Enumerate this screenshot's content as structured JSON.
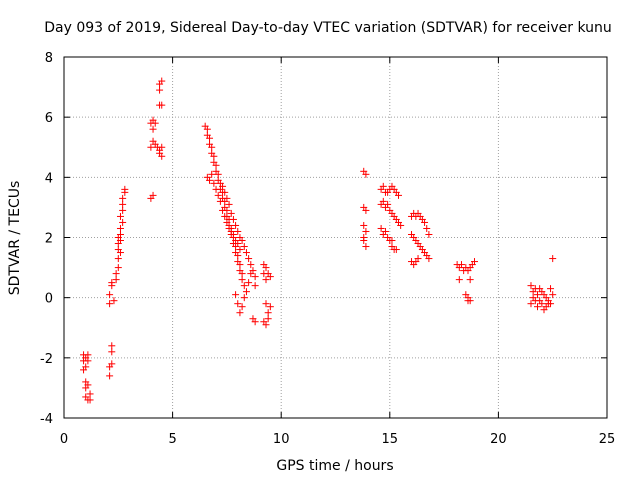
{
  "chart_data": {
    "type": "scatter",
    "title": "Day 093 of 2019, Sidereal Day-to-day VTEC variation (SDTVAR) for receiver kunu",
    "xlabel": "GPS time / hours",
    "ylabel": "SDTVAR / TECUs",
    "xlim": [
      0,
      25
    ],
    "ylim": [
      -4,
      8
    ],
    "xticks": [
      "0",
      "5",
      "10",
      "15",
      "20",
      "25"
    ],
    "yticks": [
      "-4",
      "-2",
      "0",
      "2",
      "4",
      "6",
      "8"
    ],
    "grid": true,
    "marker": "+",
    "color": "#ff0000",
    "series": [
      {
        "name": "SDTVAR",
        "points": [
          [
            0.9,
            -1.9
          ],
          [
            0.9,
            -2.1
          ],
          [
            0.9,
            -2.4
          ],
          [
            1.0,
            -2.0
          ],
          [
            1.0,
            -2.3
          ],
          [
            1.1,
            -1.9
          ],
          [
            1.1,
            -2.1
          ],
          [
            1.0,
            -2.8
          ],
          [
            1.0,
            -3.0
          ],
          [
            1.1,
            -2.9
          ],
          [
            1.0,
            -3.3
          ],
          [
            1.1,
            -3.4
          ],
          [
            1.2,
            -3.4
          ],
          [
            1.2,
            -3.2
          ],
          [
            2.1,
            -2.3
          ],
          [
            2.1,
            -2.6
          ],
          [
            2.2,
            -2.2
          ],
          [
            2.2,
            -1.8
          ],
          [
            2.2,
            -1.6
          ],
          [
            2.1,
            -0.2
          ],
          [
            2.1,
            0.1
          ],
          [
            2.2,
            0.4
          ],
          [
            2.2,
            0.5
          ],
          [
            2.3,
            -0.1
          ],
          [
            2.4,
            0.6
          ],
          [
            2.4,
            0.8
          ],
          [
            2.5,
            1.0
          ],
          [
            2.5,
            1.3
          ],
          [
            2.5,
            1.6
          ],
          [
            2.6,
            1.9
          ],
          [
            2.6,
            2.1
          ],
          [
            2.6,
            2.3
          ],
          [
            2.7,
            2.5
          ],
          [
            2.6,
            2.7
          ],
          [
            2.7,
            2.9
          ],
          [
            2.7,
            3.1
          ],
          [
            2.7,
            3.3
          ],
          [
            2.8,
            3.5
          ],
          [
            2.8,
            3.6
          ],
          [
            2.5,
            2.0
          ],
          [
            2.6,
            1.5
          ],
          [
            2.5,
            1.8
          ],
          [
            4.0,
            3.3
          ],
          [
            4.1,
            3.4
          ],
          [
            4.0,
            5.0
          ],
          [
            4.1,
            5.2
          ],
          [
            4.2,
            5.1
          ],
          [
            4.0,
            5.8
          ],
          [
            4.1,
            5.9
          ],
          [
            4.2,
            5.8
          ],
          [
            4.1,
            5.6
          ],
          [
            4.3,
            5.0
          ],
          [
            4.4,
            4.8
          ],
          [
            4.5,
            4.7
          ],
          [
            4.4,
            4.9
          ],
          [
            4.5,
            5.0
          ],
          [
            4.4,
            6.4
          ],
          [
            4.5,
            6.4
          ],
          [
            4.4,
            6.9
          ],
          [
            4.4,
            7.1
          ],
          [
            4.5,
            7.2
          ],
          [
            6.5,
            5.7
          ],
          [
            6.6,
            5.6
          ],
          [
            6.6,
            5.4
          ],
          [
            6.7,
            5.3
          ],
          [
            6.7,
            5.1
          ],
          [
            6.8,
            5.0
          ],
          [
            6.8,
            4.8
          ],
          [
            6.9,
            4.7
          ],
          [
            6.9,
            4.5
          ],
          [
            7.0,
            4.4
          ],
          [
            7.0,
            4.2
          ],
          [
            7.1,
            4.1
          ],
          [
            7.1,
            3.9
          ],
          [
            7.2,
            3.8
          ],
          [
            7.2,
            3.6
          ],
          [
            7.3,
            3.5
          ],
          [
            7.3,
            3.3
          ],
          [
            7.4,
            3.2
          ],
          [
            7.4,
            3.0
          ],
          [
            7.5,
            2.9
          ],
          [
            7.5,
            2.7
          ],
          [
            7.6,
            2.6
          ],
          [
            7.6,
            2.4
          ],
          [
            7.7,
            2.3
          ],
          [
            7.7,
            2.1
          ],
          [
            7.8,
            2.0
          ],
          [
            7.8,
            1.8
          ],
          [
            7.9,
            1.7
          ],
          [
            7.9,
            1.5
          ],
          [
            8.0,
            1.4
          ],
          [
            8.0,
            1.2
          ],
          [
            8.1,
            1.1
          ],
          [
            8.1,
            0.9
          ],
          [
            8.2,
            0.8
          ],
          [
            8.2,
            0.6
          ],
          [
            8.3,
            0.4
          ],
          [
            8.4,
            0.2
          ],
          [
            6.6,
            4.0
          ],
          [
            6.7,
            3.9
          ],
          [
            6.8,
            4.1
          ],
          [
            6.9,
            3.8
          ],
          [
            7.0,
            3.6
          ],
          [
            7.1,
            3.4
          ],
          [
            7.2,
            3.2
          ],
          [
            7.3,
            2.9
          ],
          [
            7.4,
            2.7
          ],
          [
            7.5,
            2.5
          ],
          [
            7.6,
            2.3
          ],
          [
            7.7,
            2.2
          ],
          [
            7.8,
            2.1
          ],
          [
            7.9,
            1.9
          ],
          [
            8.0,
            1.8
          ],
          [
            8.1,
            1.6
          ],
          [
            7.3,
            3.7
          ],
          [
            7.4,
            3.5
          ],
          [
            7.5,
            3.3
          ],
          [
            7.6,
            3.1
          ],
          [
            7.7,
            2.8
          ],
          [
            7.8,
            2.6
          ],
          [
            7.9,
            2.4
          ],
          [
            8.0,
            2.2
          ],
          [
            8.1,
            2.0
          ],
          [
            8.2,
            1.9
          ],
          [
            8.3,
            1.7
          ],
          [
            8.4,
            1.5
          ],
          [
            8.5,
            1.3
          ],
          [
            8.6,
            1.1
          ],
          [
            8.7,
            0.9
          ],
          [
            8.8,
            0.7
          ],
          [
            8.8,
            0.4
          ],
          [
            7.9,
            0.1
          ],
          [
            8.0,
            -0.2
          ],
          [
            8.1,
            -0.5
          ],
          [
            8.2,
            -0.3
          ],
          [
            8.3,
            0.0
          ],
          [
            8.5,
            0.5
          ],
          [
            8.6,
            0.8
          ],
          [
            8.7,
            -0.7
          ],
          [
            8.8,
            -0.8
          ],
          [
            9.2,
            1.1
          ],
          [
            9.3,
            1.0
          ],
          [
            9.2,
            0.8
          ],
          [
            9.3,
            0.6
          ],
          [
            9.4,
            0.8
          ],
          [
            9.5,
            0.7
          ],
          [
            9.3,
            -0.2
          ],
          [
            9.4,
            -0.5
          ],
          [
            9.5,
            -0.3
          ],
          [
            9.2,
            -0.8
          ],
          [
            9.3,
            -0.9
          ],
          [
            9.4,
            -0.7
          ],
          [
            13.8,
            4.2
          ],
          [
            13.9,
            4.1
          ],
          [
            13.8,
            3.0
          ],
          [
            13.9,
            2.9
          ],
          [
            13.8,
            2.4
          ],
          [
            13.9,
            2.2
          ],
          [
            13.8,
            1.9
          ],
          [
            13.9,
            1.7
          ],
          [
            13.8,
            2.0
          ],
          [
            14.6,
            3.6
          ],
          [
            14.7,
            3.7
          ],
          [
            14.8,
            3.5
          ],
          [
            14.9,
            3.5
          ],
          [
            15.0,
            3.6
          ],
          [
            15.1,
            3.7
          ],
          [
            15.2,
            3.6
          ],
          [
            15.3,
            3.5
          ],
          [
            15.4,
            3.4
          ],
          [
            14.6,
            3.1
          ],
          [
            14.7,
            3.2
          ],
          [
            14.8,
            3.0
          ],
          [
            14.9,
            3.1
          ],
          [
            15.0,
            2.9
          ],
          [
            15.1,
            2.8
          ],
          [
            15.2,
            2.7
          ],
          [
            15.3,
            2.6
          ],
          [
            15.4,
            2.5
          ],
          [
            15.5,
            2.4
          ],
          [
            14.6,
            2.3
          ],
          [
            14.7,
            2.1
          ],
          [
            14.8,
            2.2
          ],
          [
            14.9,
            2.0
          ],
          [
            15.0,
            1.9
          ],
          [
            15.1,
            1.7
          ],
          [
            15.2,
            1.6
          ],
          [
            15.3,
            1.6
          ],
          [
            15.1,
            1.9
          ],
          [
            16.0,
            2.7
          ],
          [
            16.1,
            2.8
          ],
          [
            16.2,
            2.7
          ],
          [
            16.3,
            2.8
          ],
          [
            16.4,
            2.7
          ],
          [
            16.5,
            2.6
          ],
          [
            16.6,
            2.5
          ],
          [
            16.7,
            2.3
          ],
          [
            16.8,
            2.1
          ],
          [
            16.0,
            2.1
          ],
          [
            16.1,
            2.0
          ],
          [
            16.2,
            1.9
          ],
          [
            16.3,
            1.8
          ],
          [
            16.4,
            1.7
          ],
          [
            16.5,
            1.6
          ],
          [
            16.6,
            1.5
          ],
          [
            16.7,
            1.4
          ],
          [
            16.8,
            1.3
          ],
          [
            16.0,
            1.2
          ],
          [
            16.1,
            1.1
          ],
          [
            16.2,
            1.2
          ],
          [
            16.3,
            1.3
          ],
          [
            18.1,
            1.1
          ],
          [
            18.2,
            1.0
          ],
          [
            18.3,
            1.1
          ],
          [
            18.4,
            0.9
          ],
          [
            18.5,
            1.0
          ],
          [
            18.6,
            0.9
          ],
          [
            18.7,
            1.0
          ],
          [
            18.8,
            1.1
          ],
          [
            18.9,
            1.2
          ],
          [
            18.7,
            0.6
          ],
          [
            18.2,
            0.6
          ],
          [
            18.5,
            0.1
          ],
          [
            18.6,
            0.0
          ],
          [
            18.7,
            -0.1
          ],
          [
            18.6,
            -0.1
          ],
          [
            21.5,
            0.4
          ],
          [
            21.6,
            0.2
          ],
          [
            21.7,
            0.3
          ],
          [
            21.8,
            0.1
          ],
          [
            21.9,
            0.3
          ],
          [
            22.0,
            0.2
          ],
          [
            22.1,
            0.1
          ],
          [
            22.2,
            0.0
          ],
          [
            22.3,
            -0.1
          ],
          [
            22.4,
            -0.2
          ],
          [
            22.5,
            0.1
          ],
          [
            21.5,
            -0.2
          ],
          [
            21.6,
            0.0
          ],
          [
            21.7,
            -0.1
          ],
          [
            21.8,
            -0.3
          ],
          [
            21.9,
            -0.1
          ],
          [
            22.0,
            -0.2
          ],
          [
            22.1,
            -0.4
          ],
          [
            22.2,
            -0.3
          ],
          [
            22.3,
            -0.2
          ],
          [
            22.4,
            0.3
          ],
          [
            22.5,
            1.3
          ]
        ]
      }
    ]
  }
}
